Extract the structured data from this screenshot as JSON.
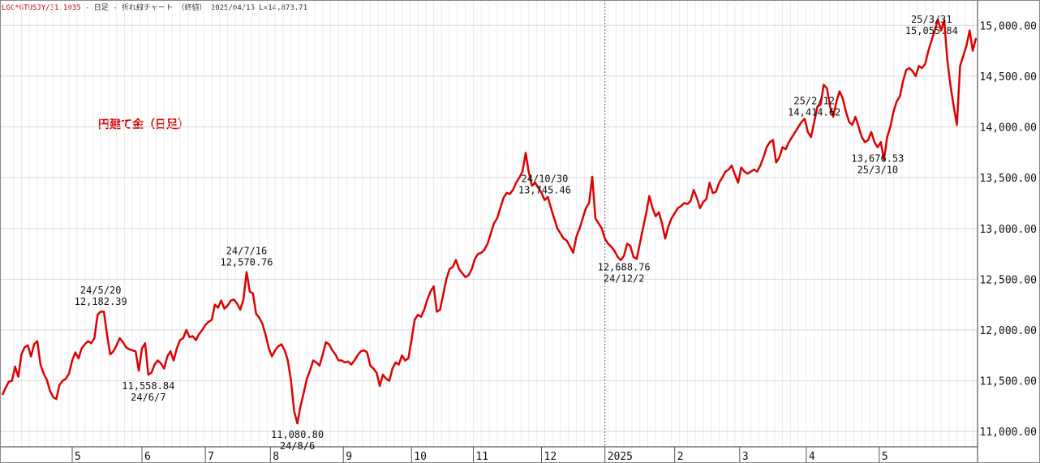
{
  "header": {
    "symbol": "LGC*GTUSJY/31.1035",
    "rest": " - 日足 - 折れ線チャート （終値）  2025/04/15  L=14,873.71"
  },
  "chart_data": {
    "type": "line",
    "title": "円建て金（日足）",
    "line_color": "#e00000",
    "grid": true,
    "ylim": [
      10850,
      15250
    ],
    "y_ticks": [
      11000,
      11500,
      12000,
      12500,
      13000,
      13500,
      14000,
      14500,
      15000
    ],
    "y_tick_labels": [
      "11,000.00",
      "11,500.00",
      "12,000.00",
      "12,500.00",
      "13,000.00",
      "13,500.00",
      "14,000.00",
      "14,500.00",
      "15,000.00"
    ],
    "x_tick_labels": [
      "5",
      "6",
      "7",
      "8",
      "9",
      "10",
      "11",
      "12",
      "2025",
      "2",
      "3",
      "4",
      "5"
    ],
    "x_tick_days": [
      44,
      88,
      128,
      169,
      215,
      258,
      297,
      340,
      380,
      424,
      465,
      507,
      553
    ],
    "year_divider_day": 380,
    "x_range": [
      0,
      615
    ],
    "values": [
      11360,
      11430,
      11490,
      11500,
      11640,
      11540,
      11760,
      11830,
      11850,
      11740,
      11860,
      11890,
      11660,
      11570,
      11510,
      11400,
      11340,
      11320,
      11460,
      11500,
      11520,
      11570,
      11700,
      11780,
      11720,
      11820,
      11860,
      11890,
      11870,
      11920,
      12150,
      12182,
      12180,
      11950,
      11760,
      11790,
      11850,
      11920,
      11880,
      11830,
      11810,
      11800,
      11790,
      11600,
      11820,
      11870,
      11560,
      11580,
      11660,
      11700,
      11670,
      11620,
      11740,
      11790,
      11700,
      11820,
      11900,
      11920,
      12000,
      11930,
      11940,
      11900,
      11960,
      12000,
      12050,
      12080,
      12100,
      12250,
      12220,
      12290,
      12210,
      12240,
      12290,
      12300,
      12260,
      12200,
      12300,
      12571,
      12380,
      12360,
      12160,
      12120,
      12060,
      11950,
      11820,
      11740,
      11800,
      11840,
      11860,
      11800,
      11700,
      11500,
      11200,
      11081,
      11250,
      11380,
      11520,
      11600,
      11700,
      11680,
      11650,
      11760,
      11880,
      11860,
      11800,
      11760,
      11700,
      11700,
      11680,
      11690,
      11660,
      11700,
      11750,
      11790,
      11800,
      11780,
      11650,
      11620,
      11580,
      11450,
      11560,
      11520,
      11500,
      11620,
      11680,
      11660,
      11750,
      11700,
      11720,
      11900,
      12100,
      12150,
      12130,
      12200,
      12300,
      12380,
      12430,
      12180,
      12200,
      12350,
      12500,
      12600,
      12620,
      12690,
      12600,
      12560,
      12520,
      12540,
      12600,
      12700,
      12750,
      12760,
      12790,
      12850,
      12950,
      13050,
      13100,
      13200,
      13300,
      13350,
      13340,
      13380,
      13450,
      13500,
      13560,
      13745,
      13550,
      13420,
      13450,
      13400,
      13350,
      13280,
      13310,
      13200,
      13100,
      13000,
      12950,
      12900,
      12880,
      12820,
      12760,
      12920,
      13000,
      13100,
      13200,
      13250,
      13510,
      13100,
      13050,
      13000,
      12900,
      12850,
      12820,
      12780,
      12720,
      12689,
      12730,
      12850,
      12830,
      12720,
      12700,
      12850,
      13000,
      13150,
      13320,
      13200,
      13120,
      13160,
      13050,
      12900,
      13020,
      13100,
      13150,
      13200,
      13220,
      13250,
      13240,
      13270,
      13380,
      13300,
      13200,
      13260,
      13290,
      13450,
      13350,
      13360,
      13450,
      13500,
      13560,
      13580,
      13620,
      13530,
      13450,
      13600,
      13560,
      13540,
      13560,
      13580,
      13560,
      13620,
      13700,
      13800,
      13850,
      13870,
      13650,
      13700,
      13800,
      13780,
      13850,
      13900,
      13950,
      14000,
      14050,
      14080,
      13950,
      13900,
      14050,
      14200,
      14220,
      14415,
      14380,
      14200,
      14100,
      14250,
      14350,
      14280,
      14150,
      14050,
      14020,
      14100,
      14000,
      13900,
      13850,
      13870,
      13950,
      13850,
      13800,
      13850,
      13677,
      13900,
      14000,
      14150,
      14250,
      14300,
      14450,
      14560,
      14580,
      14550,
      14500,
      14600,
      14580,
      14620,
      14750,
      14850,
      14950,
      15056,
      14950,
      15050,
      14650,
      14400,
      14200,
      14020,
      14600,
      14700,
      14800,
      14950,
      14750,
      14874
    ],
    "annotations": [
      {
        "date": "24/5/20",
        "value": "12,182.39",
        "idx": 31,
        "pos": "above"
      },
      {
        "date": "24/6/7",
        "value": "11,558.84",
        "idx": 46,
        "pos": "below"
      },
      {
        "date": "24/7/16",
        "value": "12,570.76",
        "idx": 77,
        "pos": "above"
      },
      {
        "date": "24/8/6",
        "value": "11,080.80",
        "idx": 93,
        "pos": "below"
      },
      {
        "date": "24/10/30",
        "value": "13,745.46",
        "idx": 171,
        "pos": "above"
      },
      {
        "date": "24/12/2",
        "value": "12,688.76",
        "idx": 196,
        "pos": "below"
      },
      {
        "date": "25/2/12",
        "value": "14,414.62",
        "idx": 256,
        "pos": "above"
      },
      {
        "date": "25/3/10",
        "value": "13,676.53",
        "idx": 276,
        "pos": "below"
      },
      {
        "date": "25/3/31",
        "value": "15,055.84",
        "idx": 293,
        "pos": "above"
      }
    ]
  }
}
